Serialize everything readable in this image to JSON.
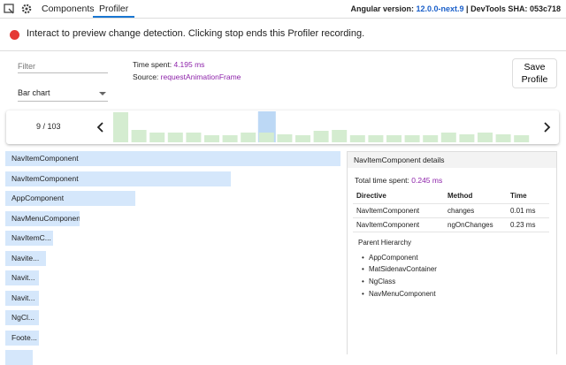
{
  "toolbar": {
    "tabs": [
      "Components",
      "Profiler"
    ],
    "version_label": "Angular version:",
    "version": "12.0.0-next.9",
    "separator": "|",
    "sha_label": "DevTools SHA:",
    "sha": "053c718"
  },
  "banner": "Interact to preview change detection. Clicking stop ends this Profiler recording.",
  "controls": {
    "filter_placeholder": "Filter",
    "view": "Bar chart",
    "time_label": "Time spent:",
    "time_value": "4.195 ms",
    "source_label": "Source:",
    "source_value": "requestAnimationFrame",
    "save_button": "Save Profile"
  },
  "frames": {
    "position": "9 / 103"
  },
  "flame_rows": [
    "NavItemComponent",
    "NavItemComponent",
    "AppComponent",
    "NavMenuComponent",
    "NavItemC...",
    "Navite...",
    "Navit...",
    "Navit...",
    "NgCl...",
    "Foote..."
  ],
  "details": {
    "title": "NavItemComponent details",
    "total_label": "Total time spent:",
    "total_value": "0.245 ms",
    "columns": [
      "Directive",
      "Method",
      "Time"
    ],
    "rows": [
      [
        "NavItemComponent",
        "changes",
        "0.01 ms"
      ],
      [
        "NavItemComponent",
        "ngOnChanges",
        "0.23 ms"
      ]
    ],
    "hierarchy_title": "Parent Hierarchy",
    "hierarchy": [
      "AppComponent",
      "MatSidenavContainer",
      "NgClass",
      "NavMenuComponent"
    ]
  }
}
